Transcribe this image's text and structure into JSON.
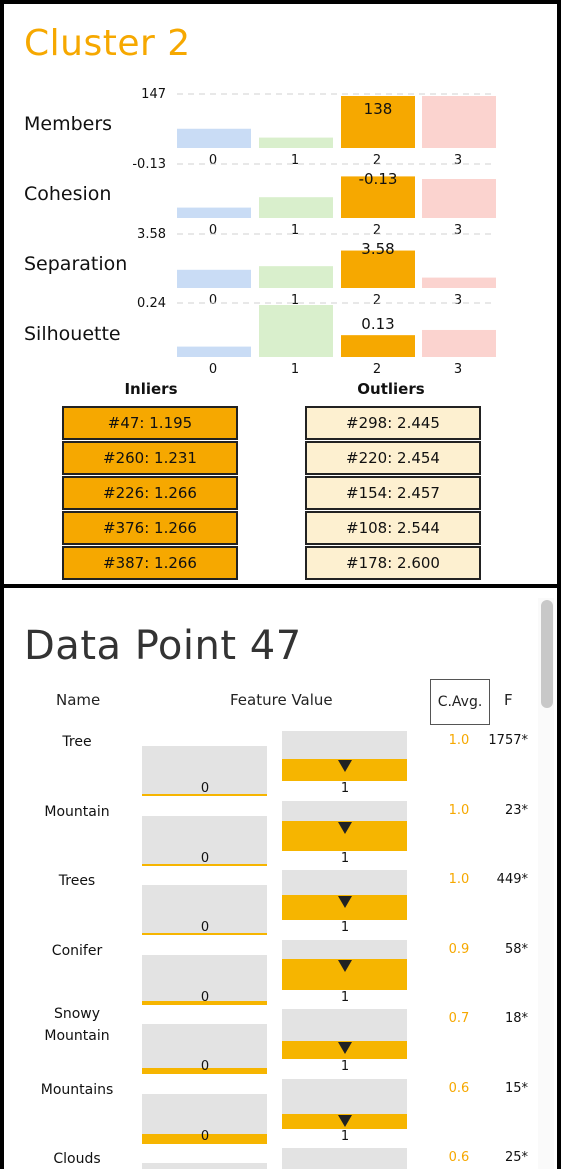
{
  "cluster": {
    "title": "Cluster 2",
    "metrics": [
      {
        "label": "Members",
        "max_label": "147",
        "min_label": "-0.13",
        "values": [
          0.37,
          0.2,
          1.0,
          1.0
        ],
        "selected_value": "138"
      },
      {
        "label": "Cohesion",
        "max_label": "-0.13",
        "min_label": "3.58",
        "values": [
          0.2,
          0.4,
          0.8,
          0.75
        ],
        "selected_value": "-0.13"
      },
      {
        "label": "Separation",
        "max_label": "3.58",
        "min_label": "0.24",
        "values": [
          0.35,
          0.42,
          0.72,
          0.2
        ],
        "selected_value": "3.58"
      },
      {
        "label": "Silhouette",
        "max_label": "0.24",
        "min_label": "",
        "values": [
          0.2,
          1.0,
          0.42,
          0.52
        ],
        "selected_value": "0.13"
      }
    ],
    "categories": [
      "0",
      "1",
      "2",
      "3"
    ],
    "colors": {
      "0": "#c9dcf5",
      "1": "#d9efcc",
      "2": "#f6a800",
      "3": "#fbd3cf"
    },
    "inliers_label": "Inliers",
    "outliers_label": "Outliers",
    "inliers": [
      "#47: 1.195",
      "#260: 1.231",
      "#226: 1.266",
      "#376: 1.266",
      "#387: 1.266"
    ],
    "outliers": [
      "#298: 2.445",
      "#220: 2.454",
      "#154: 2.457",
      "#108: 2.544",
      "#178: 2.600"
    ]
  },
  "datapoint": {
    "title": "Data Point 47",
    "col_name": "Name",
    "col_value": "Feature Value",
    "col_cavg": "C.Avg.",
    "col_f": "F",
    "tick_zero": "0",
    "tick_one": "1",
    "features": [
      {
        "name": "Tree",
        "cavg": "1.0",
        "f": "1757*",
        "zero_fill": 0.0,
        "one_fill": 0.45
      },
      {
        "name": "Mountain",
        "cavg": "1.0",
        "f": "23*",
        "zero_fill": 0.02,
        "one_fill": 0.6
      },
      {
        "name": "Trees",
        "cavg": "1.0",
        "f": "449*",
        "zero_fill": 0.0,
        "one_fill": 0.5
      },
      {
        "name": "Conifer",
        "cavg": "0.9",
        "f": "58*",
        "zero_fill": 0.08,
        "one_fill": 0.62
      },
      {
        "name": "Snowy Mountain",
        "cavg": "0.7",
        "f": "18*",
        "zero_fill": 0.12,
        "one_fill": 0.36
      },
      {
        "name": "Mountains",
        "cavg": "0.6",
        "f": "15*",
        "zero_fill": 0.2,
        "one_fill": 0.3
      },
      {
        "name": "Clouds",
        "cavg": "0.6",
        "f": "25*",
        "zero_fill": 0.0,
        "one_fill": 0.0
      }
    ]
  }
}
